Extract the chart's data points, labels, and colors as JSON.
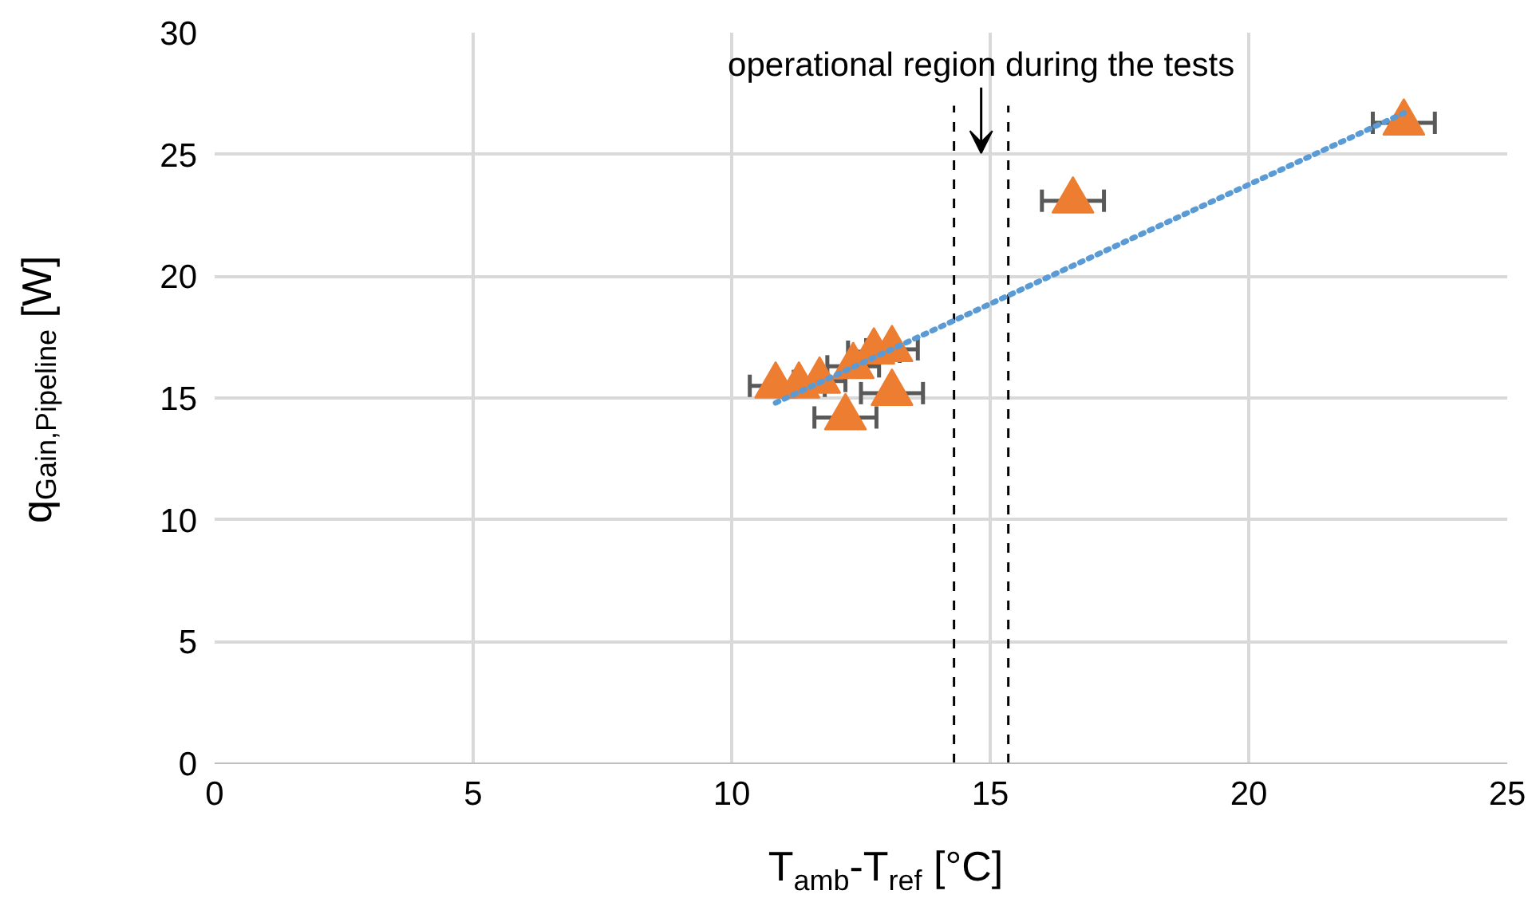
{
  "chart_data": {
    "type": "scatter",
    "xlabel": "T$_{amb}$-T$_{ref}$ [°C]",
    "ylabel": "q$_{Gain,Pipeline}$ [W]",
    "xlim": [
      0,
      25
    ],
    "ylim": [
      0,
      30
    ],
    "xticks": [
      0,
      5,
      10,
      15,
      20,
      25
    ],
    "yticks": [
      0,
      5,
      10,
      15,
      20,
      25,
      30
    ],
    "grid": true,
    "series": [
      {
        "color": "#ed7d31",
        "marker": "triangle",
        "x": [
          10.85,
          11.3,
          11.7,
          12.2,
          12.35,
          12.75,
          13.1,
          13.1,
          16.6,
          23.0
        ],
        "values": [
          15.5,
          15.5,
          15.7,
          14.2,
          16.3,
          16.9,
          17.0,
          15.2,
          23.1,
          26.3
        ],
        "xerrors": [
          0.5,
          0.5,
          0.5,
          0.6,
          0.5,
          0.5,
          0.5,
          0.6,
          0.6,
          0.6
        ]
      },
      {
        "type": "line",
        "color": "#5b9bd5",
        "line_style": "dotted",
        "x": [
          10.85,
          23.0
        ],
        "values": [
          14.8,
          26.7
        ]
      }
    ],
    "ref_lines": [
      {
        "axis": "x",
        "value": 14.3,
        "line_style": "dashed",
        "color": "#000000"
      },
      {
        "axis": "x",
        "value": 15.35,
        "line_style": "dashed",
        "color": "#000000"
      }
    ],
    "annotations": [
      "operational region during the tests"
    ]
  }
}
